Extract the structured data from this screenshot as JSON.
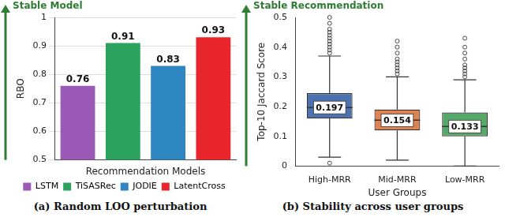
{
  "chart_data": [
    {
      "type": "bar",
      "title": "(a) Random LOO perturbation",
      "annotation": "Stable Model",
      "categories": [
        "LSTM",
        "TiSASRec",
        "JODIE",
        "LatentCross"
      ],
      "values": [
        0.76,
        0.91,
        0.83,
        0.93
      ],
      "colors": [
        "#9b59b6",
        "#2ca25f",
        "#2e86c1",
        "#e8262b"
      ],
      "x_label": "Recommendation Models",
      "y_label": "RBO",
      "ylim": [
        0.5,
        1
      ],
      "yticks": [
        0.5,
        0.6,
        0.7,
        0.8,
        0.9,
        1
      ],
      "grid": true,
      "data_labels": true,
      "legend": "bottom",
      "tick_labels": "y"
    },
    {
      "type": "box",
      "title": "(b) Stability across user groups",
      "annotation": "Stable Recommendation",
      "categories": [
        "High-MRR",
        "Mid-MRR",
        "Low-MRR"
      ],
      "boxes": [
        {
          "min": 0.03,
          "q1": 0.16,
          "median": 0.197,
          "q3": 0.245,
          "max": 0.37,
          "outliers": [
            0.38,
            0.39,
            0.4,
            0.41,
            0.42,
            0.43,
            0.44,
            0.45,
            0.46,
            0.48,
            0.5,
            0.01
          ]
        },
        {
          "min": 0.02,
          "q1": 0.12,
          "median": 0.154,
          "q3": 0.19,
          "max": 0.3,
          "outliers": [
            0.31,
            0.32,
            0.33,
            0.34,
            0.35,
            0.36,
            0.38,
            0.4,
            0.42
          ]
        },
        {
          "min": 0.0,
          "q1": 0.1,
          "median": 0.133,
          "q3": 0.18,
          "max": 0.29,
          "outliers": [
            0.3,
            0.31,
            0.32,
            0.33,
            0.34,
            0.36,
            0.38,
            0.4,
            0.43
          ]
        }
      ],
      "colors": [
        "#4c72b0",
        "#dd8452",
        "#55a868"
      ],
      "x_label": "User Groups",
      "y_label": "Top-10 Jaccard Score",
      "ylim": [
        0,
        0.5
      ],
      "yticks": [
        0,
        0.1,
        0.2,
        0.3,
        0.4,
        0.5
      ],
      "grid": false,
      "data_labels": true
    }
  ]
}
